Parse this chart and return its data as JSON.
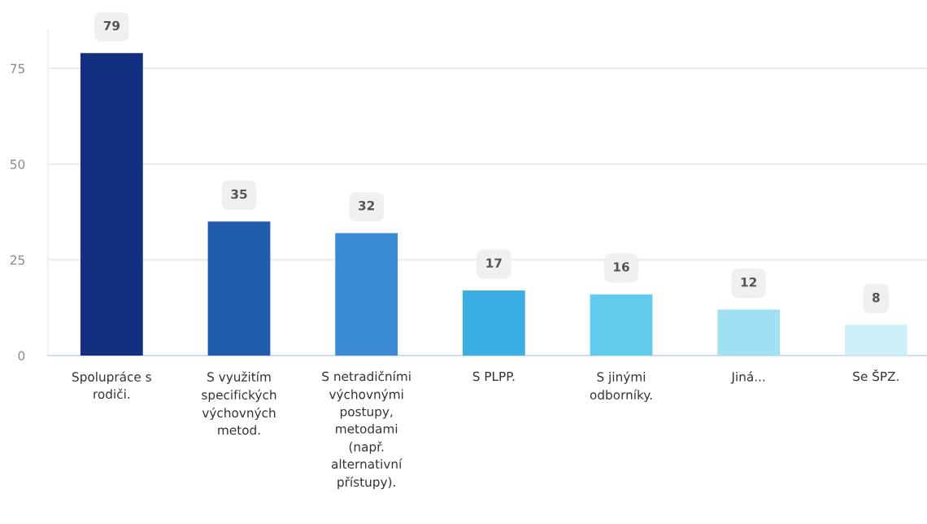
{
  "chart_data": {
    "type": "bar",
    "categories": [
      "Spolupráce s rodiči.",
      "S využitím specifických výchovných metod.",
      "S netradičními výchovnými postupy, metodami (např. alternativní přístupy).",
      "S PLPP.",
      "S jinými odborníky.",
      "Jiná...",
      "Se ŠPZ."
    ],
    "values": [
      79,
      35,
      32,
      17,
      16,
      12,
      8
    ],
    "colors": [
      "#122f80",
      "#215cad",
      "#3a8ad6",
      "#3aade4",
      "#62ccee",
      "#a0e0f3",
      "#cef0f9"
    ],
    "ylim": [
      0,
      85
    ],
    "yticks": [
      0,
      25,
      50,
      75
    ],
    "grid": "y",
    "data_labels": true
  }
}
